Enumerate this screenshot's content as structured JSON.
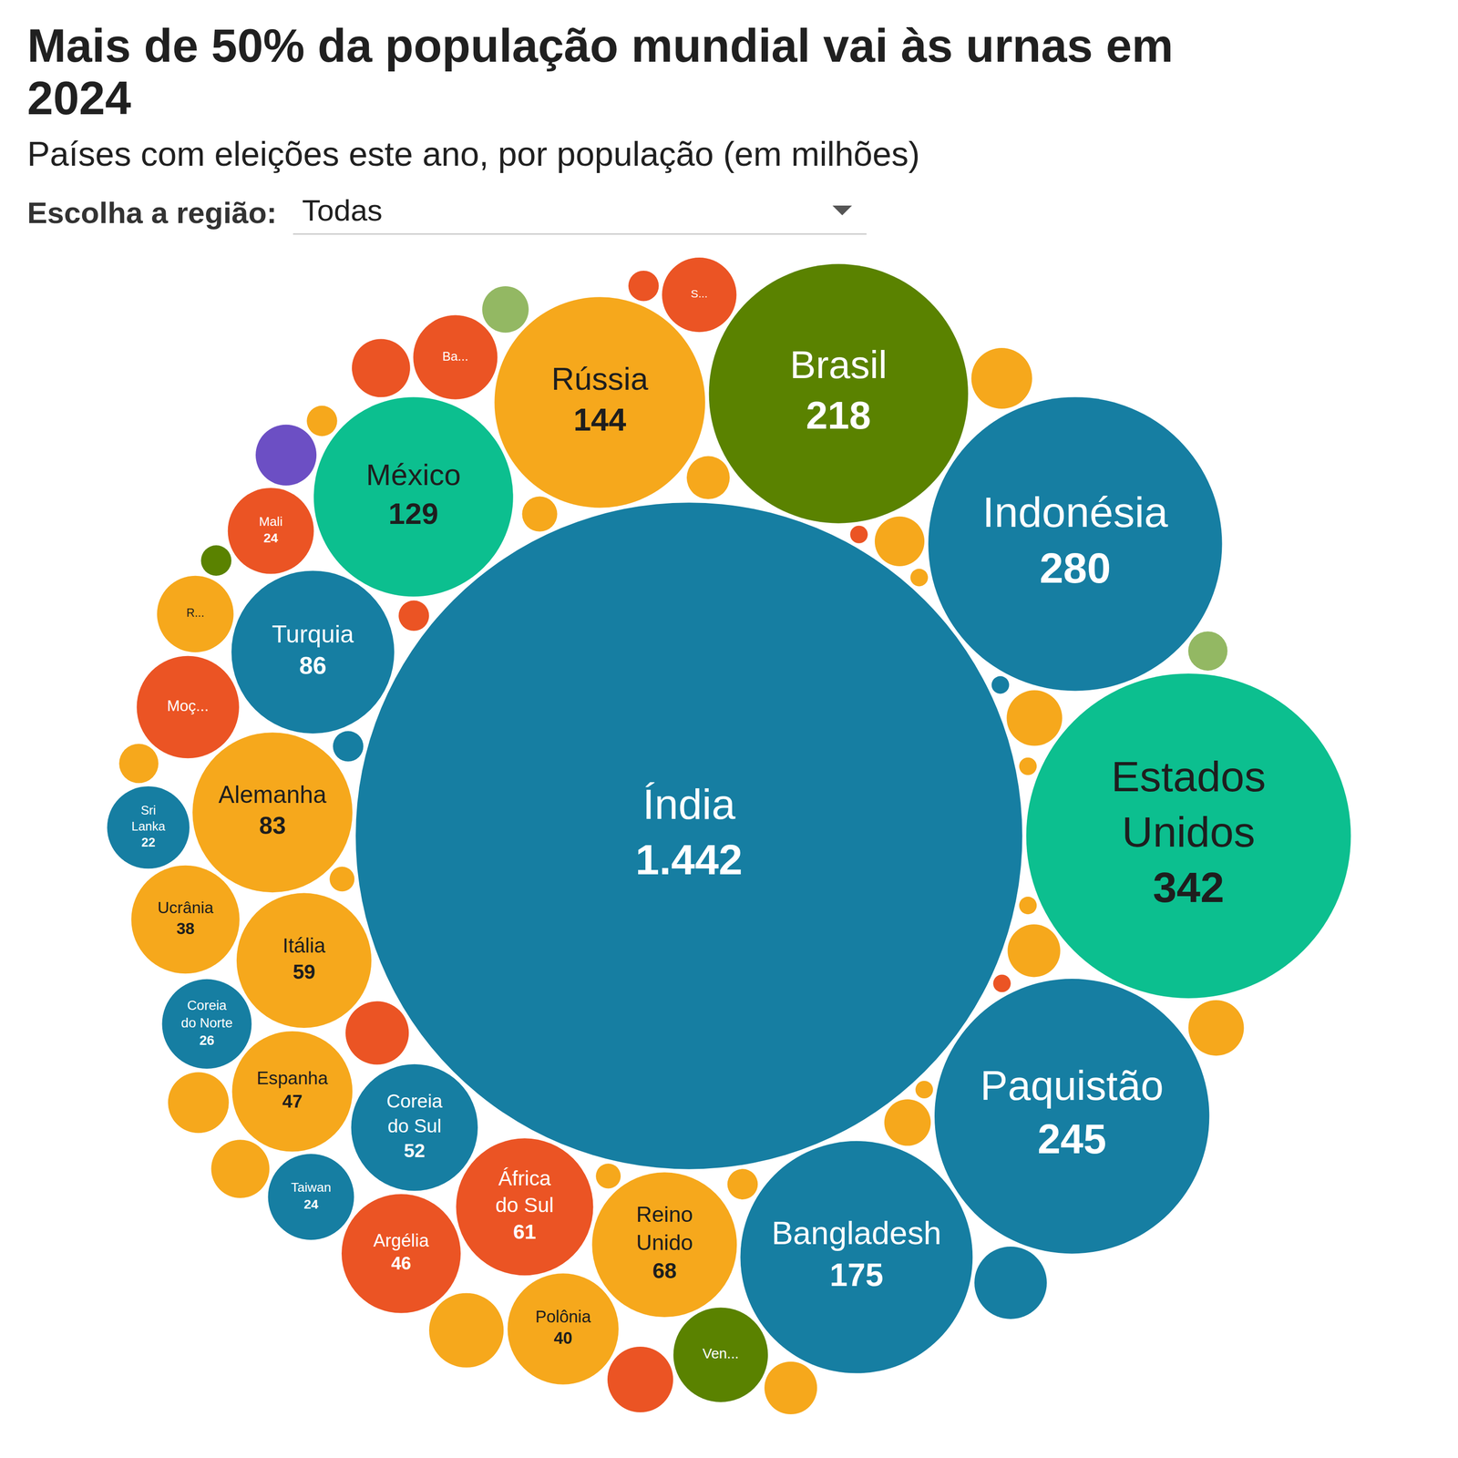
{
  "chart_data": {
    "type": "bubble",
    "title": "Mais de 50% da população mundial vai às urnas em 2024",
    "subtitle": "Países com eleições este ano, por população (em milhões)",
    "control": {
      "label": "Escolha a região:",
      "value": "Todas"
    },
    "categories": [
      "Índia",
      "Estados Unidos",
      "Indonésia",
      "Paquistão",
      "Brasil",
      "Bangladesh",
      "Rússia",
      "México",
      "Turquia",
      "Alemanha",
      "Reino Unido",
      "África do Sul",
      "Itália",
      "Coreia do Sul",
      "Espanha",
      "Argélia",
      "Polônia",
      "Ucrânia",
      "Moç...",
      "Ven...",
      "Coreia do Norte",
      "Mali",
      "Taiwan",
      "Ba...",
      "Sri Lanka",
      "R...",
      "S...",
      null,
      null,
      null,
      null,
      null,
      null,
      null,
      null,
      null,
      null,
      null,
      null,
      null,
      null,
      null,
      null,
      null,
      null,
      null,
      null,
      null,
      null,
      null,
      null,
      null,
      null,
      null,
      null,
      null,
      null,
      null,
      null,
      null,
      null,
      null
    ],
    "values": [
      1442,
      342,
      280,
      245,
      218,
      175,
      144,
      129,
      86,
      83,
      68,
      61,
      59,
      52,
      47,
      46,
      40,
      38,
      34,
      29,
      26,
      24,
      24,
      23,
      22,
      19,
      18,
      18,
      17,
      14,
      13,
      12,
      12,
      12,
      11,
      11,
      10,
      10,
      9,
      9,
      8,
      7,
      7,
      6,
      5,
      5,
      4,
      3,
      3,
      3,
      3,
      3,
      3,
      2,
      2,
      1,
      1,
      1,
      1,
      1,
      1,
      1
    ],
    "value_labels": [
      "1.442",
      "342",
      "280",
      "245",
      "218",
      "175",
      "144",
      "129",
      "86",
      "83",
      "68",
      "61",
      "59",
      "52",
      "47",
      "46",
      "40",
      "38",
      null,
      null,
      "26",
      "24",
      "24",
      null,
      "22",
      null,
      null,
      null,
      null,
      null,
      null,
      null,
      null,
      null,
      null,
      null,
      null,
      null,
      null,
      null,
      null,
      null,
      null,
      null,
      null,
      null,
      null,
      null,
      null,
      null,
      null,
      null,
      null,
      null,
      null,
      null,
      null,
      null,
      null,
      null,
      null,
      null
    ],
    "colors": [
      "#167ea2",
      "#0cbf8f",
      "#167ea2",
      "#167ea2",
      "#5a8200",
      "#167ea2",
      "#f6a81c",
      "#0cbf8f",
      "#167ea2",
      "#f6a81c",
      "#f6a81c",
      "#eb5424",
      "#f6a81c",
      "#167ea2",
      "#f6a81c",
      "#eb5424",
      "#f6a81c",
      "#f6a81c",
      "#eb5424",
      "#5a8200",
      "#167ea2",
      "#eb5424",
      "#167ea2",
      "#eb5424",
      "#167ea2",
      "#f6a81c",
      "#eb5424",
      "#f6a81c",
      "#167ea2",
      "#eb5424",
      "#eb5424",
      "#f6a81c",
      "#6c4fc4",
      "#f6a81c",
      "#f6a81c",
      "#eb5424",
      "#f6a81c",
      "#f6a81c",
      "#f6a81c",
      "#f6a81c",
      "#f6a81c",
      "#f6a81c",
      "#93b863",
      "#f6a81c",
      "#93b863",
      "#f6a81c",
      "#f6a81c",
      "#f6a81c",
      "#eb5424",
      "#167ea2",
      "#5a8200",
      "#eb5424",
      "#f6a81c",
      "#f6a81c",
      "#f6a81c",
      "#167ea2",
      "#f6a81c",
      "#f6a81c",
      "#f6a81c",
      "#eb5424",
      "#f6a81c",
      "#eb5424"
    ],
    "data_labels": true,
    "tick_labels": false
  }
}
